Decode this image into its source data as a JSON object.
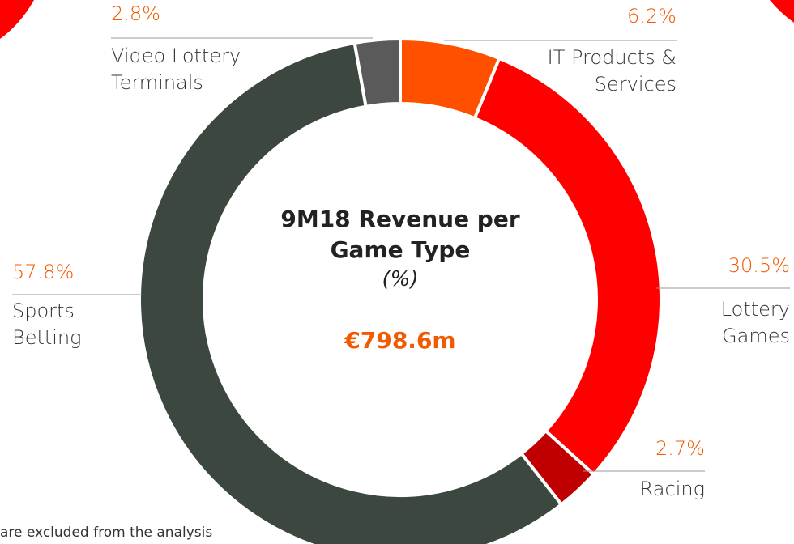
{
  "chart_data": {
    "type": "donut",
    "title": "9M18 Revenue per Game Type",
    "subtitle": "(%)",
    "total": "€798.6m",
    "note": "are excluded from the analysis",
    "categories": [
      "IT Products & Services",
      "Lottery Games",
      "Racing",
      "Sports Betting",
      "Video Lottery Terminals"
    ],
    "values": [
      6.2,
      30.5,
      2.7,
      57.8,
      2.8
    ],
    "value_labels": [
      "6.2%",
      "30.5%",
      "2.7%",
      "57.8%",
      "2.8%"
    ],
    "colors": [
      "#ff5000",
      "#ff0000",
      "#c00000",
      "#3c4740",
      "#5a5a5a"
    ],
    "label_color": "#f05a00"
  }
}
